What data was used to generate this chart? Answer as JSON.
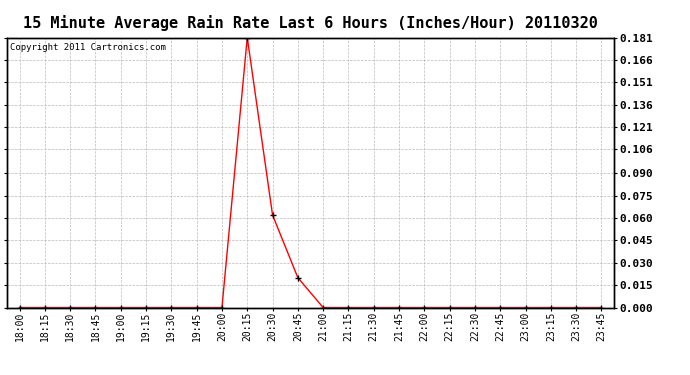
{
  "title": "15 Minute Average Rain Rate Last 6 Hours (Inches/Hour) 20110320",
  "copyright": "Copyright 2011 Cartronics.com",
  "line_color": "red",
  "marker": "+",
  "marker_color": "black",
  "background_color": "white",
  "grid_color": "#bbbbbb",
  "x_labels": [
    "18:00",
    "18:15",
    "18:30",
    "18:45",
    "19:00",
    "19:15",
    "19:30",
    "19:45",
    "20:00",
    "20:15",
    "20:30",
    "20:45",
    "21:00",
    "21:15",
    "21:30",
    "21:45",
    "22:00",
    "22:15",
    "22:30",
    "22:45",
    "23:00",
    "23:15",
    "23:30",
    "23:45"
  ],
  "y_values": [
    0.0,
    0.0,
    0.0,
    0.0,
    0.0,
    0.0,
    0.0,
    0.0,
    0.0,
    0.181,
    0.062,
    0.02,
    0.0,
    0.0,
    0.0,
    0.0,
    0.0,
    0.0,
    0.0,
    0.0,
    0.0,
    0.0,
    0.0,
    0.0
  ],
  "y_ticks": [
    0.0,
    0.015,
    0.03,
    0.045,
    0.06,
    0.075,
    0.09,
    0.106,
    0.121,
    0.136,
    0.151,
    0.166,
    0.181
  ],
  "ylim": [
    0.0,
    0.181
  ],
  "title_fontsize": 11,
  "tick_fontsize": 7,
  "copyright_fontsize": 6.5,
  "ylabel_fontsize": 8,
  "ylabel_bold": true
}
